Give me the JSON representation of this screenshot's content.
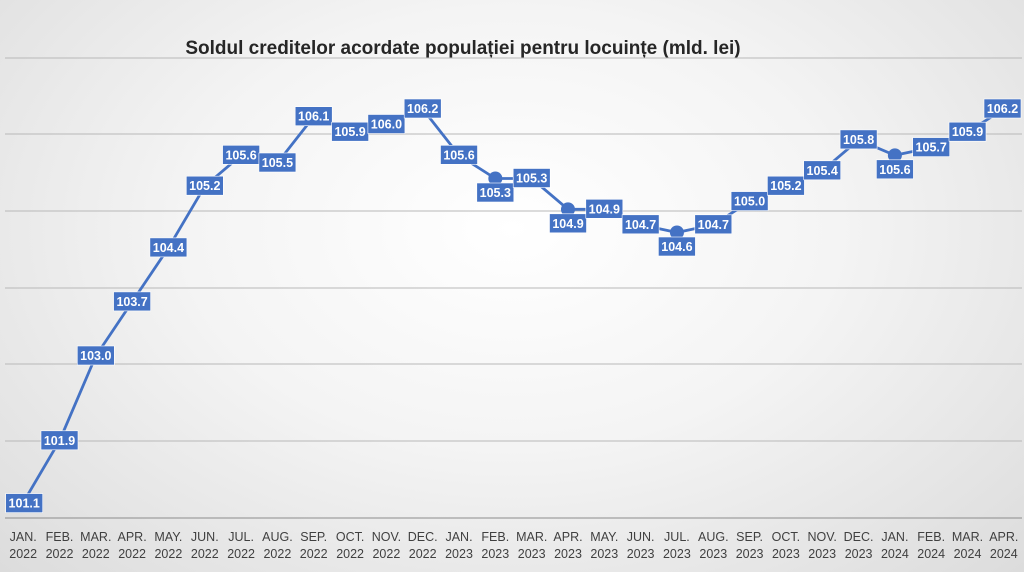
{
  "chart_data": {
    "type": "line",
    "title": "Soldul creditelor acordate populației pentru locuințe (mld. lei)",
    "xlabel": "",
    "ylabel": "",
    "categories": [
      [
        "JAN.",
        "2022"
      ],
      [
        "FEB.",
        "2022"
      ],
      [
        "MAR.",
        "2022"
      ],
      [
        "APR.",
        "2022"
      ],
      [
        "MAY.",
        "2022"
      ],
      [
        "JUN.",
        "2022"
      ],
      [
        "JUL.",
        "2022"
      ],
      [
        "AUG.",
        "2022"
      ],
      [
        "SEP.",
        "2022"
      ],
      [
        "OCT.",
        "2022"
      ],
      [
        "NOV.",
        "2022"
      ],
      [
        "DEC.",
        "2022"
      ],
      [
        "JAN.",
        "2023"
      ],
      [
        "FEB.",
        "2023"
      ],
      [
        "MAR.",
        "2023"
      ],
      [
        "APR.",
        "2023"
      ],
      [
        "MAY.",
        "2023"
      ],
      [
        "JUN.",
        "2023"
      ],
      [
        "JUL.",
        "2023"
      ],
      [
        "AUG.",
        "2023"
      ],
      [
        "SEP.",
        "2023"
      ],
      [
        "OCT.",
        "2023"
      ],
      [
        "NOV.",
        "2023"
      ],
      [
        "DEC.",
        "2023"
      ],
      [
        "JAN.",
        "2024"
      ],
      [
        "FEB.",
        "2024"
      ],
      [
        "MAR.",
        "2024"
      ],
      [
        "APR.",
        "2024"
      ]
    ],
    "series": [
      {
        "values": [
          101.1,
          101.9,
          103.0,
          103.7,
          104.4,
          105.2,
          105.6,
          105.5,
          106.1,
          105.9,
          106.0,
          106.2,
          105.6,
          105.3,
          105.3,
          104.9,
          104.9,
          104.7,
          104.6,
          104.7,
          105.0,
          105.2,
          105.4,
          105.8,
          105.6,
          105.7,
          105.9,
          106.2
        ],
        "labels": [
          "101.1",
          "101.9",
          "103.0",
          "103.7",
          "104.4",
          "105.2",
          "105.6",
          "105.5",
          "106.1",
          "105.9",
          "106.0",
          "106.2",
          "105.6",
          "105.3",
          "105.3",
          "104.9",
          "104.9",
          "104.7",
          "104.6",
          "104.7",
          "105.0",
          "105.2",
          "105.4",
          "105.8",
          "105.6",
          "105.7",
          "105.9",
          "106.2"
        ],
        "color": "#4472c4"
      }
    ],
    "ylim": [
      100.9,
      106.9
    ],
    "grid": true,
    "legend": "none",
    "data_labels": true
  }
}
